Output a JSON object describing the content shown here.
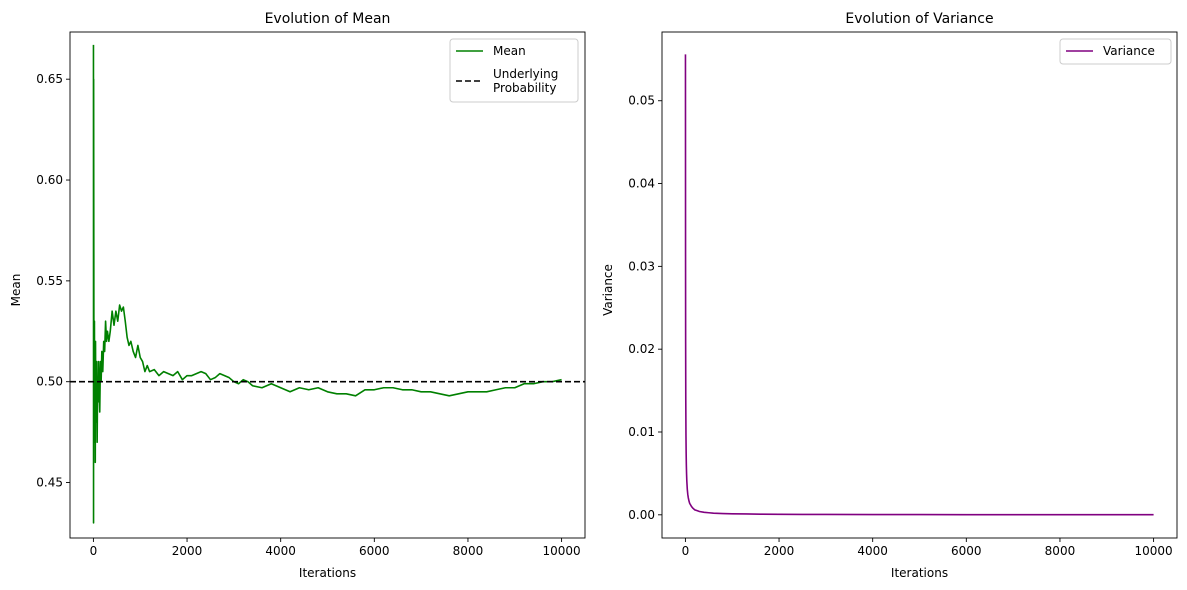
{
  "chart_data": [
    {
      "type": "line",
      "title": "Evolution of Mean",
      "xlabel": "Iterations",
      "ylabel": "Mean",
      "xlim": [
        -500,
        10500
      ],
      "ylim": [
        0.4225,
        0.6734
      ],
      "xticks": [
        0,
        2000,
        4000,
        6000,
        8000,
        10000
      ],
      "yticks": [
        0.45,
        0.5,
        0.55,
        0.6,
        0.65
      ],
      "ytick_labels": [
        "0.45",
        "0.50",
        "0.55",
        "0.60",
        "0.65"
      ],
      "legend_position": "upper right",
      "grid": false,
      "series": [
        {
          "name": "Mean",
          "color": "#008000",
          "style": "solid",
          "x": [
            1,
            3,
            5,
            7,
            9,
            12,
            15,
            18,
            22,
            26,
            30,
            35,
            40,
            45,
            50,
            55,
            60,
            70,
            80,
            90,
            100,
            110,
            120,
            135,
            150,
            165,
            180,
            200,
            220,
            240,
            260,
            280,
            300,
            330,
            360,
            400,
            440,
            480,
            520,
            560,
            600,
            640,
            680,
            720,
            760,
            800,
            850,
            900,
            950,
            1000,
            1050,
            1100,
            1150,
            1200,
            1300,
            1400,
            1500,
            1600,
            1700,
            1800,
            1900,
            2000,
            2100,
            2200,
            2300,
            2400,
            2500,
            2600,
            2700,
            2800,
            2900,
            3000,
            3100,
            3200,
            3300,
            3400,
            3600,
            3800,
            4000,
            4200,
            4400,
            4600,
            4800,
            5000,
            5200,
            5400,
            5600,
            5800,
            6000,
            6200,
            6400,
            6600,
            6800,
            7000,
            7200,
            7400,
            7600,
            7800,
            8000,
            8200,
            8400,
            8600,
            8800,
            9000,
            9200,
            9400,
            9600,
            9800,
            10000
          ],
          "y": [
            0.667,
            0.43,
            0.65,
            0.6,
            0.56,
            0.48,
            0.51,
            0.47,
            0.53,
            0.49,
            0.47,
            0.51,
            0.46,
            0.52,
            0.49,
            0.5,
            0.48,
            0.51,
            0.47,
            0.5,
            0.49,
            0.51,
            0.5,
            0.485,
            0.51,
            0.5,
            0.515,
            0.505,
            0.52,
            0.515,
            0.53,
            0.52,
            0.525,
            0.52,
            0.525,
            0.535,
            0.528,
            0.535,
            0.53,
            0.538,
            0.535,
            0.537,
            0.53,
            0.522,
            0.518,
            0.52,
            0.515,
            0.512,
            0.518,
            0.512,
            0.51,
            0.505,
            0.508,
            0.505,
            0.506,
            0.503,
            0.505,
            0.504,
            0.503,
            0.505,
            0.501,
            0.503,
            0.503,
            0.504,
            0.505,
            0.504,
            0.501,
            0.502,
            0.504,
            0.503,
            0.502,
            0.5,
            0.499,
            0.501,
            0.5,
            0.498,
            0.497,
            0.499,
            0.497,
            0.495,
            0.497,
            0.496,
            0.497,
            0.495,
            0.494,
            0.494,
            0.493,
            0.496,
            0.496,
            0.497,
            0.497,
            0.496,
            0.496,
            0.495,
            0.495,
            0.494,
            0.493,
            0.494,
            0.495,
            0.495,
            0.495,
            0.496,
            0.497,
            0.497,
            0.499,
            0.499,
            0.5,
            0.5,
            0.501
          ]
        },
        {
          "name": "Underlying Probability",
          "legend_lines": [
            "Underlying",
            "Probability"
          ],
          "color": "#000000",
          "style": "dashed",
          "hline": 0.5
        }
      ]
    },
    {
      "type": "line",
      "title": "Evolution of Variance",
      "xlabel": "Iterations",
      "ylabel": "Variance",
      "xlim": [
        -500,
        10500
      ],
      "ylim": [
        -0.0028,
        0.0583
      ],
      "xticks": [
        0,
        2000,
        4000,
        6000,
        8000,
        10000
      ],
      "yticks": [
        0.0,
        0.01,
        0.02,
        0.03,
        0.04,
        0.05
      ],
      "ytick_labels": [
        "0.00",
        "0.01",
        "0.02",
        "0.03",
        "0.04",
        "0.05"
      ],
      "legend_position": "upper right",
      "grid": false,
      "series": [
        {
          "name": "Variance",
          "color": "#800080",
          "style": "solid",
          "x": [
            1,
            3,
            5,
            8,
            12,
            16,
            20,
            25,
            30,
            40,
            50,
            60,
            75,
            90,
            110,
            130,
            160,
            200,
            250,
            300,
            400,
            500,
            600,
            800,
            1000,
            1300,
            1600,
            2000,
            2500,
            3000,
            4000,
            5000,
            6000,
            7000,
            8000,
            9000,
            10000
          ],
          "y": [
            0.0556,
            0.0312,
            0.0208,
            0.0139,
            0.0096,
            0.0074,
            0.006,
            0.0049,
            0.0041,
            0.0031,
            0.0025,
            0.0021,
            0.0017,
            0.0014,
            0.0012,
            0.001,
            0.0008,
            0.0006,
            0.0005,
            0.0004,
            0.0003,
            0.00025,
            0.0002,
            0.00015,
            0.00012,
            0.0001,
            8e-05,
            6e-05,
            5e-05,
            4e-05,
            3e-05,
            2.5e-05,
            2e-05,
            1.8e-05,
            1.6e-05,
            1.4e-05,
            1.2e-05
          ]
        }
      ]
    }
  ]
}
